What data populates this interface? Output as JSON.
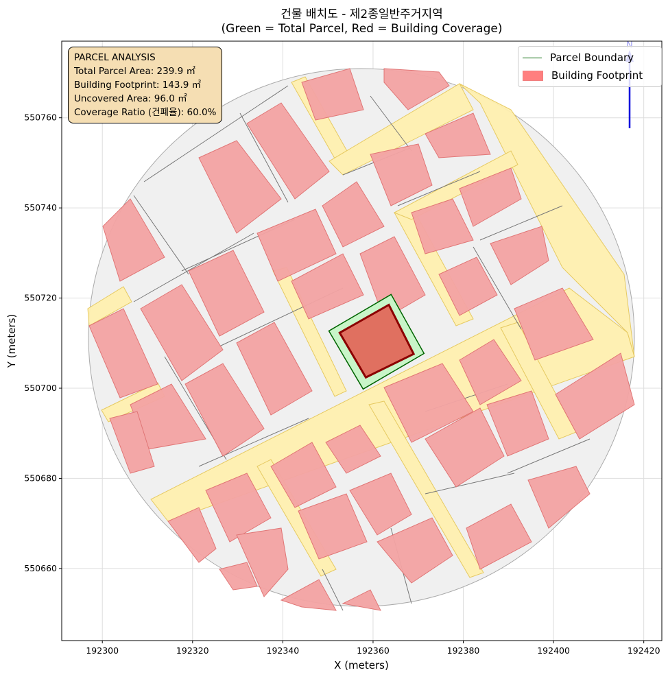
{
  "chart_data": {
    "type": "map",
    "title": "건물 배치도 - 제2종일반주거지역",
    "subtitle": "(Green = Total Parcel, Red = Building Coverage)",
    "xlabel": "X (meters)",
    "ylabel": "Y (meters)",
    "xlim": [
      192291,
      192424
    ],
    "ylim": [
      550644,
      550777
    ],
    "xticks": [
      192300,
      192320,
      192340,
      192360,
      192380,
      192400,
      192420
    ],
    "yticks": [
      550660,
      550680,
      550700,
      550720,
      550740,
      550760
    ],
    "grid": true,
    "legend": {
      "placement": "top-right",
      "entries": [
        "Parcel Boundary",
        "Building Footprint"
      ]
    },
    "parcel": [
      [
        192350.2,
        550712.7
      ],
      [
        192364.0,
        550720.8
      ],
      [
        192371.3,
        550707.7
      ],
      [
        192357.8,
        550699.8
      ]
    ],
    "building": [
      [
        192352.6,
        550712.3
      ],
      [
        192363.5,
        550718.5
      ],
      [
        192369.0,
        550707.6
      ],
      [
        192358.4,
        550702.4
      ]
    ],
    "north_arrow_label": "N"
  },
  "info": {
    "heading": "PARCEL ANALYSIS",
    "lines": [
      "Total Parcel Area: 239.9 ㎡",
      "Building Footprint: 143.9 ㎡",
      "Uncovered Area: 96.0 ㎡",
      "Coverage Ratio (건폐율): 60.0%"
    ]
  },
  "colors": {
    "parcel_fill": "#c8f5c8",
    "parcel_edge": "#006400",
    "building_fill": "#e07060",
    "building_edge": "#8b0000",
    "road": "#fff0b0",
    "context_building": "#f4a4a4"
  }
}
